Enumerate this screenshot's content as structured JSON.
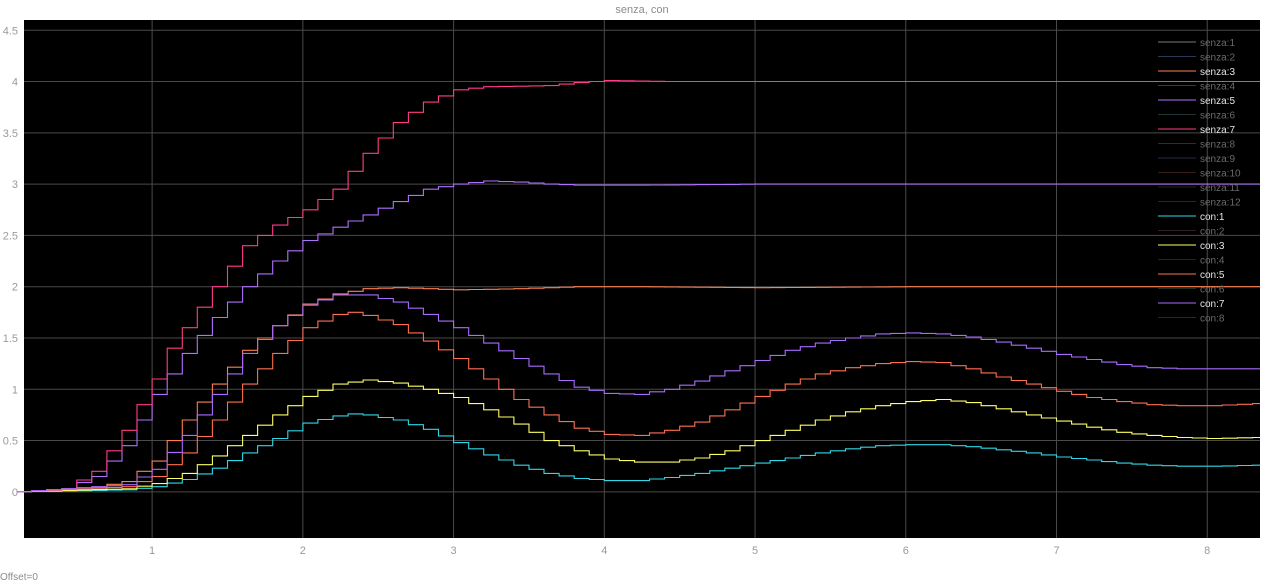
{
  "chart_data": {
    "type": "line",
    "title": "senza, con",
    "xlim": [
      0.15,
      8.35
    ],
    "ylim": [
      -0.45,
      4.6
    ],
    "xticks": [
      1,
      2,
      3,
      4,
      5,
      6,
      7,
      8
    ],
    "yticks": [
      0,
      0.5,
      1,
      1.5,
      2,
      2.5,
      3,
      3.5,
      4,
      4.5
    ],
    "xtick_labels": [
      "1",
      "2",
      "3",
      "4",
      "5",
      "6",
      "7",
      "8"
    ],
    "ytick_labels": [
      "0",
      "0.5",
      "1",
      "1.5",
      "2",
      "2.5",
      "3",
      "3.5",
      "4",
      "4.5"
    ],
    "grid": true,
    "legend_position": "top-right",
    "step_dt": 0.1,
    "background": "#000000",
    "grid_color": "#4a4a4a",
    "series": [
      {
        "name": "senza:1",
        "color": "#d9d9d9",
        "visible": false,
        "points": []
      },
      {
        "name": "senza:2",
        "color": "#4a6a9a",
        "visible": false,
        "points": []
      },
      {
        "name": "senza:3",
        "color": "#ff7f50",
        "visible": true,
        "points": [
          [
            0.1,
            0
          ],
          [
            0.5,
            0.02
          ],
          [
            0.8,
            0.1
          ],
          [
            1.0,
            0.3
          ],
          [
            1.2,
            0.7
          ],
          [
            1.4,
            1.05
          ],
          [
            1.6,
            1.38
          ],
          [
            1.8,
            1.62
          ],
          [
            2.0,
            1.83
          ],
          [
            2.2,
            1.93
          ],
          [
            2.4,
            1.98
          ],
          [
            2.6,
            1.99
          ],
          [
            3.0,
            1.97
          ],
          [
            3.4,
            1.98
          ],
          [
            3.8,
            2.0
          ],
          [
            4.2,
            2.0
          ],
          [
            5.0,
            1.99
          ],
          [
            6.0,
            2.0
          ],
          [
            8.3,
            2.0
          ]
        ]
      },
      {
        "name": "senza:4",
        "color": "#2e8b57",
        "visible": false,
        "points": []
      },
      {
        "name": "senza:5",
        "color": "#b070ff",
        "visible": true,
        "points": [
          [
            0.1,
            0
          ],
          [
            0.4,
            0.03
          ],
          [
            0.6,
            0.15
          ],
          [
            0.8,
            0.45
          ],
          [
            1.0,
            0.95
          ],
          [
            1.2,
            1.35
          ],
          [
            1.4,
            1.7
          ],
          [
            1.6,
            2.0
          ],
          [
            1.8,
            2.25
          ],
          [
            2.0,
            2.45
          ],
          [
            2.2,
            2.58
          ],
          [
            2.4,
            2.7
          ],
          [
            2.6,
            2.83
          ],
          [
            2.8,
            2.95
          ],
          [
            3.0,
            3.0
          ],
          [
            3.2,
            3.03
          ],
          [
            3.4,
            3.02
          ],
          [
            3.6,
            3.0
          ],
          [
            3.8,
            2.99
          ],
          [
            4.2,
            2.99
          ],
          [
            5.0,
            3.0
          ],
          [
            6.0,
            3.0
          ],
          [
            8.3,
            3.0
          ]
        ]
      },
      {
        "name": "senza:6",
        "color": "#3a5f5f",
        "visible": false,
        "points": []
      },
      {
        "name": "senza:7",
        "color": "#ff3c8a",
        "visible": true,
        "points": [
          [
            0.1,
            0
          ],
          [
            0.4,
            0.03
          ],
          [
            0.6,
            0.2
          ],
          [
            0.8,
            0.6
          ],
          [
            1.0,
            1.1
          ],
          [
            1.1,
            1.4
          ],
          [
            1.3,
            1.8
          ],
          [
            1.4,
            2.0
          ],
          [
            1.6,
            2.4
          ],
          [
            1.8,
            2.6
          ],
          [
            2.0,
            2.75
          ],
          [
            2.2,
            2.95
          ],
          [
            2.4,
            3.3
          ],
          [
            2.6,
            3.6
          ],
          [
            2.8,
            3.8
          ],
          [
            3.0,
            3.92
          ],
          [
            3.2,
            3.95
          ],
          [
            3.6,
            3.96
          ],
          [
            3.8,
            3.99
          ],
          [
            4.0,
            4.01
          ],
          [
            4.4,
            4.0
          ],
          [
            5.0,
            4.0
          ],
          [
            8.3,
            4.0
          ]
        ]
      },
      {
        "name": "senza:8",
        "color": "#7a3f5a",
        "visible": false,
        "points": []
      },
      {
        "name": "senza:9",
        "color": "#3f4f7a",
        "visible": false,
        "points": []
      },
      {
        "name": "senza:10",
        "color": "#6a3a2a",
        "visible": false,
        "points": []
      },
      {
        "name": "senza:11",
        "color": "#3a4a3a",
        "visible": false,
        "points": []
      },
      {
        "name": "senza:12",
        "color": "#5a3a6a",
        "visible": false,
        "points": []
      },
      {
        "name": "con:1",
        "color": "#2fd8e8",
        "visible": true,
        "points": [
          [
            0.1,
            0
          ],
          [
            0.8,
            0.02
          ],
          [
            1.0,
            0.05
          ],
          [
            1.2,
            0.12
          ],
          [
            1.4,
            0.23
          ],
          [
            1.6,
            0.38
          ],
          [
            1.8,
            0.52
          ],
          [
            2.0,
            0.67
          ],
          [
            2.2,
            0.74
          ],
          [
            2.3,
            0.76
          ],
          [
            2.4,
            0.75
          ],
          [
            2.6,
            0.7
          ],
          [
            2.8,
            0.61
          ],
          [
            3.0,
            0.48
          ],
          [
            3.2,
            0.36
          ],
          [
            3.4,
            0.26
          ],
          [
            3.6,
            0.18
          ],
          [
            3.8,
            0.13
          ],
          [
            4.0,
            0.11
          ],
          [
            4.2,
            0.11
          ],
          [
            4.4,
            0.14
          ],
          [
            4.6,
            0.18
          ],
          [
            4.8,
            0.23
          ],
          [
            5.0,
            0.28
          ],
          [
            5.2,
            0.33
          ],
          [
            5.4,
            0.38
          ],
          [
            5.6,
            0.42
          ],
          [
            5.8,
            0.45
          ],
          [
            6.0,
            0.46
          ],
          [
            6.2,
            0.46
          ],
          [
            6.4,
            0.44
          ],
          [
            6.6,
            0.41
          ],
          [
            6.8,
            0.38
          ],
          [
            7.0,
            0.34
          ],
          [
            7.2,
            0.31
          ],
          [
            7.4,
            0.28
          ],
          [
            7.6,
            0.26
          ],
          [
            7.8,
            0.25
          ],
          [
            8.0,
            0.25
          ],
          [
            8.3,
            0.26
          ]
        ]
      },
      {
        "name": "con:2",
        "color": "#5a3a3a",
        "visible": false,
        "points": []
      },
      {
        "name": "con:3",
        "color": "#ffff66",
        "visible": true,
        "points": [
          [
            0.1,
            0
          ],
          [
            0.8,
            0.03
          ],
          [
            1.0,
            0.08
          ],
          [
            1.2,
            0.18
          ],
          [
            1.4,
            0.35
          ],
          [
            1.6,
            0.55
          ],
          [
            1.8,
            0.75
          ],
          [
            2.0,
            0.93
          ],
          [
            2.2,
            1.05
          ],
          [
            2.4,
            1.09
          ],
          [
            2.6,
            1.06
          ],
          [
            2.8,
            1.0
          ],
          [
            3.0,
            0.92
          ],
          [
            3.2,
            0.8
          ],
          [
            3.4,
            0.66
          ],
          [
            3.6,
            0.5
          ],
          [
            3.8,
            0.4
          ],
          [
            4.0,
            0.32
          ],
          [
            4.2,
            0.29
          ],
          [
            4.4,
            0.29
          ],
          [
            4.6,
            0.33
          ],
          [
            4.8,
            0.4
          ],
          [
            5.0,
            0.5
          ],
          [
            5.2,
            0.6
          ],
          [
            5.4,
            0.7
          ],
          [
            5.6,
            0.78
          ],
          [
            5.8,
            0.84
          ],
          [
            6.0,
            0.88
          ],
          [
            6.2,
            0.9
          ],
          [
            6.4,
            0.87
          ],
          [
            6.6,
            0.81
          ],
          [
            6.8,
            0.75
          ],
          [
            7.0,
            0.69
          ],
          [
            7.2,
            0.63
          ],
          [
            7.4,
            0.58
          ],
          [
            7.6,
            0.55
          ],
          [
            7.8,
            0.53
          ],
          [
            8.0,
            0.52
          ],
          [
            8.3,
            0.53
          ]
        ]
      },
      {
        "name": "con:4",
        "color": "#2a4a6a",
        "visible": false,
        "points": []
      },
      {
        "name": "con:5",
        "color": "#ff6f4f",
        "visible": true,
        "points": [
          [
            0.1,
            0
          ],
          [
            0.8,
            0.05
          ],
          [
            1.0,
            0.15
          ],
          [
            1.2,
            0.38
          ],
          [
            1.4,
            0.7
          ],
          [
            1.6,
            1.05
          ],
          [
            1.8,
            1.35
          ],
          [
            2.0,
            1.6
          ],
          [
            2.2,
            1.73
          ],
          [
            2.3,
            1.75
          ],
          [
            2.4,
            1.72
          ],
          [
            2.6,
            1.63
          ],
          [
            2.8,
            1.47
          ],
          [
            3.0,
            1.3
          ],
          [
            3.2,
            1.1
          ],
          [
            3.4,
            0.9
          ],
          [
            3.6,
            0.75
          ],
          [
            3.8,
            0.62
          ],
          [
            4.0,
            0.56
          ],
          [
            4.2,
            0.55
          ],
          [
            4.4,
            0.6
          ],
          [
            4.6,
            0.68
          ],
          [
            4.8,
            0.8
          ],
          [
            5.0,
            0.93
          ],
          [
            5.2,
            1.05
          ],
          [
            5.4,
            1.15
          ],
          [
            5.6,
            1.21
          ],
          [
            5.8,
            1.25
          ],
          [
            6.0,
            1.27
          ],
          [
            6.2,
            1.26
          ],
          [
            6.4,
            1.2
          ],
          [
            6.6,
            1.12
          ],
          [
            6.8,
            1.05
          ],
          [
            7.0,
            0.98
          ],
          [
            7.2,
            0.92
          ],
          [
            7.4,
            0.88
          ],
          [
            7.6,
            0.85
          ],
          [
            7.8,
            0.84
          ],
          [
            8.0,
            0.84
          ],
          [
            8.3,
            0.86
          ]
        ]
      },
      {
        "name": "con:6",
        "color": "#2a5a4a",
        "visible": false,
        "points": []
      },
      {
        "name": "con:7",
        "color": "#a86bff",
        "visible": true,
        "points": [
          [
            0.1,
            0
          ],
          [
            0.8,
            0.07
          ],
          [
            1.0,
            0.22
          ],
          [
            1.2,
            0.55
          ],
          [
            1.4,
            0.95
          ],
          [
            1.6,
            1.35
          ],
          [
            1.8,
            1.62
          ],
          [
            2.0,
            1.82
          ],
          [
            2.2,
            1.92
          ],
          [
            2.4,
            1.92
          ],
          [
            2.6,
            1.85
          ],
          [
            2.8,
            1.73
          ],
          [
            3.0,
            1.6
          ],
          [
            3.2,
            1.45
          ],
          [
            3.4,
            1.3
          ],
          [
            3.6,
            1.15
          ],
          [
            3.8,
            1.02
          ],
          [
            4.0,
            0.96
          ],
          [
            4.2,
            0.95
          ],
          [
            4.4,
            1.0
          ],
          [
            4.6,
            1.08
          ],
          [
            4.8,
            1.18
          ],
          [
            5.0,
            1.28
          ],
          [
            5.2,
            1.38
          ],
          [
            5.4,
            1.45
          ],
          [
            5.6,
            1.5
          ],
          [
            5.8,
            1.54
          ],
          [
            6.0,
            1.55
          ],
          [
            6.2,
            1.54
          ],
          [
            6.4,
            1.51
          ],
          [
            6.6,
            1.46
          ],
          [
            6.8,
            1.4
          ],
          [
            7.0,
            1.34
          ],
          [
            7.2,
            1.29
          ],
          [
            7.4,
            1.24
          ],
          [
            7.6,
            1.21
          ],
          [
            7.8,
            1.2
          ],
          [
            8.0,
            1.2
          ],
          [
            8.3,
            1.2
          ]
        ]
      },
      {
        "name": "con:8",
        "color": "#4a4a4a",
        "visible": false,
        "points": []
      }
    ]
  },
  "status": {
    "offset": "Offset=0"
  }
}
